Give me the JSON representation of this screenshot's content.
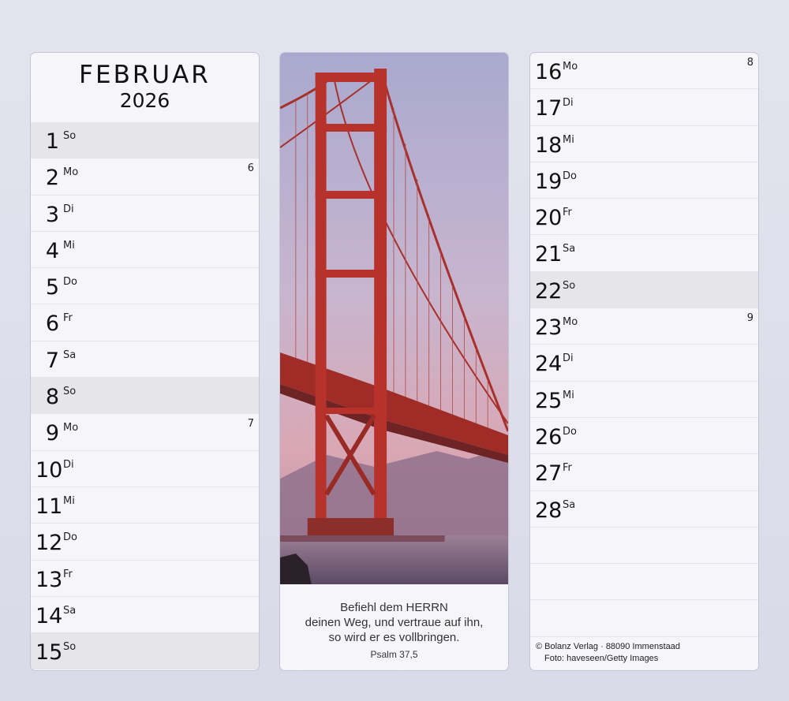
{
  "header": {
    "month": "FEBRUAR",
    "year": "2026"
  },
  "left_days": [
    {
      "day": "1",
      "weekday": "So",
      "week": "",
      "sunday": true
    },
    {
      "day": "2",
      "weekday": "Mo",
      "week": "6"
    },
    {
      "day": "3",
      "weekday": "Di",
      "week": ""
    },
    {
      "day": "4",
      "weekday": "Mi",
      "week": ""
    },
    {
      "day": "5",
      "weekday": "Do",
      "week": ""
    },
    {
      "day": "6",
      "weekday": "Fr",
      "week": ""
    },
    {
      "day": "7",
      "weekday": "Sa",
      "week": ""
    },
    {
      "day": "8",
      "weekday": "So",
      "week": "",
      "sunday": true
    },
    {
      "day": "9",
      "weekday": "Mo",
      "week": "7"
    },
    {
      "day": "10",
      "weekday": "Di",
      "week": ""
    },
    {
      "day": "11",
      "weekday": "Mi",
      "week": ""
    },
    {
      "day": "12",
      "weekday": "Do",
      "week": ""
    },
    {
      "day": "13",
      "weekday": "Fr",
      "week": ""
    },
    {
      "day": "14",
      "weekday": "Sa",
      "week": ""
    },
    {
      "day": "15",
      "weekday": "So",
      "week": "",
      "sunday": true
    }
  ],
  "right_days": [
    {
      "day": "16",
      "weekday": "Mo",
      "week": "8"
    },
    {
      "day": "17",
      "weekday": "Di",
      "week": ""
    },
    {
      "day": "18",
      "weekday": "Mi",
      "week": ""
    },
    {
      "day": "19",
      "weekday": "Do",
      "week": ""
    },
    {
      "day": "20",
      "weekday": "Fr",
      "week": ""
    },
    {
      "day": "21",
      "weekday": "Sa",
      "week": ""
    },
    {
      "day": "22",
      "weekday": "So",
      "week": "",
      "sunday": true
    },
    {
      "day": "23",
      "weekday": "Mo",
      "week": "9"
    },
    {
      "day": "24",
      "weekday": "Di",
      "week": ""
    },
    {
      "day": "25",
      "weekday": "Mi",
      "week": ""
    },
    {
      "day": "26",
      "weekday": "Do",
      "week": ""
    },
    {
      "day": "27",
      "weekday": "Fr",
      "week": ""
    },
    {
      "day": "28",
      "weekday": "Sa",
      "week": ""
    },
    {
      "day": "",
      "weekday": "",
      "week": ""
    },
    {
      "day": "",
      "weekday": "",
      "week": ""
    },
    {
      "day": "",
      "weekday": "",
      "week": ""
    }
  ],
  "verse": {
    "lines": [
      "Befiehl dem HERRN",
      "deinen Weg, und vertraue auf ihn,",
      "so wird er es vollbringen."
    ],
    "reference": "Psalm 37,5"
  },
  "photo": {
    "subject": "golden-gate-bridge"
  },
  "footer": {
    "copyright": "© Bolanz Verlag · 88090 Immenstaad",
    "photo_credit": "Foto: haveseen/Getty Images"
  },
  "colors": {
    "sunday_row": "#e5e5ea",
    "panel": "#f6f6fa",
    "bridge": "#b8322c"
  }
}
